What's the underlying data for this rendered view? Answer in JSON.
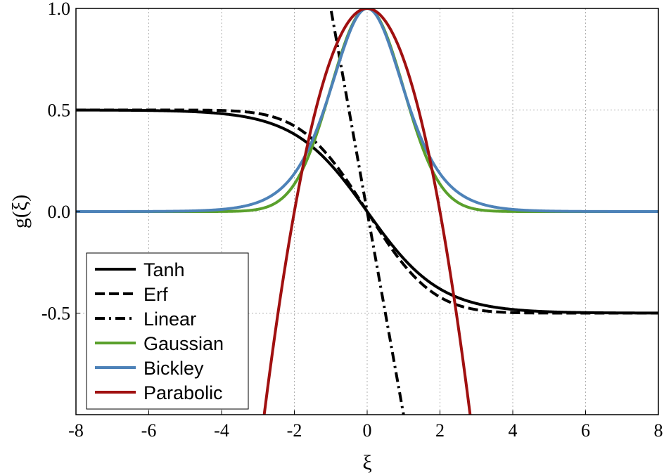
{
  "chart_data": {
    "type": "line",
    "title": "",
    "xlabel": "ξ",
    "ylabel": "g(ξ)",
    "xlim": [
      -8,
      8
    ],
    "ylim": [
      -1,
      1
    ],
    "xticks": [
      -8,
      -6,
      -4,
      -2,
      0,
      2,
      4,
      6,
      8
    ],
    "xtick_labels": [
      "-8",
      "-6",
      "-4",
      "-2",
      "0",
      "2",
      "4",
      "6",
      "8"
    ],
    "yticks": [
      -0.5,
      0.0,
      0.5,
      1.0
    ],
    "ytick_labels": [
      "-0.5",
      "0.0",
      "0.5",
      "1.0"
    ],
    "grid": true,
    "legend_position": "bottom-left",
    "series": [
      {
        "name": "Tanh",
        "color": "#000000",
        "style": "solid",
        "function": "-0.5*tanh(x/2)"
      },
      {
        "name": "Erf",
        "color": "#000000",
        "style": "dashed",
        "function": "-0.5*erf(x/2)"
      },
      {
        "name": "Linear",
        "color": "#000000",
        "style": "dashdot",
        "function": "-x"
      },
      {
        "name": "Gaussian",
        "color": "#5aa02c",
        "style": "solid",
        "function": "exp(-x^2/2)"
      },
      {
        "name": "Bickley",
        "color": "#4d82b8",
        "style": "solid",
        "function": "sech(x/1.35)^2"
      },
      {
        "name": "Parabolic",
        "color": "#a01010",
        "style": "solid",
        "function": "1-x^2/4"
      }
    ]
  }
}
